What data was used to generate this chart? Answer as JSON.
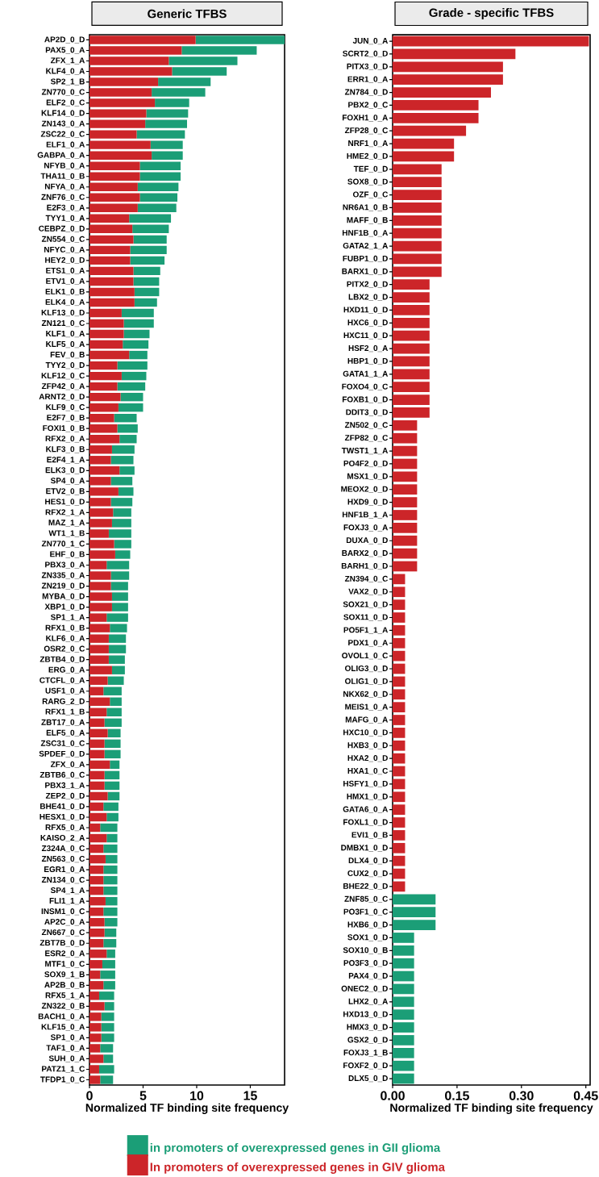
{
  "chart_data": [
    {
      "type": "bar",
      "orientation": "horizontal",
      "stacked": true,
      "title": "Generic TFBS",
      "xlabel": "Normalized TF binding site frequency",
      "xlim": [
        0,
        18.2
      ],
      "xticks": [
        0,
        5,
        10,
        15
      ],
      "legend": "bottom",
      "categories": [
        "AP2D_0_D",
        "PAX5_0_A",
        "ZFX_1_A",
        "KLF4_0_A",
        "SP2_1_B",
        "ZN770_0_C",
        "ELF2_0_C",
        "KLF14_0_D",
        "ZN143_0_A",
        "ZSC22_0_C",
        "ELF1_0_A",
        "GABPA_0_A",
        "NFYB_0_A",
        "THA11_0_B",
        "NFYA_0_A",
        "ZNF76_0_C",
        "E2F3_0_A",
        "TYY1_0_A",
        "CEBPZ_0_D",
        "ZN554_0_C",
        "NFYC_0_A",
        "HEY2_0_D",
        "ETS1_0_A",
        "ETV1_0_A",
        "ELK1_0_B",
        "ELK4_0_A",
        "KLF13_0_D",
        "ZN121_0_C",
        "KLF1_0_A",
        "KLF5_0_A",
        "FEV_0_B",
        "TYY2_0_D",
        "KLF12_0_C",
        "ZFP42_0_A",
        "ARNT2_0_D",
        "KLF9_0_C",
        "E2F7_0_B",
        "FOXI1_0_B",
        "RFX2_0_A",
        "KLF3_0_B",
        "E2F4_1_A",
        "ELK3_0_D",
        "SP4_0_A",
        "ETV2_0_B",
        "HES1_0_D",
        "RFX2_1_A",
        "MAZ_1_A",
        "WT1_1_B",
        "ZN770_1_C",
        "EHF_0_B",
        "PBX3_0_A",
        "ZN335_0_A",
        "ZN219_0_D",
        "MYBA_0_D",
        "XBP1_0_D",
        "SP1_1_A",
        "RFX1_0_B",
        "KLF6_0_A",
        "OSR2_0_C",
        "ZBTB4_0_D",
        "ERG_0_A",
        "CTCFL_0_A",
        "USF1_0_A",
        "RARG_2_D",
        "RFX1_1_B",
        "ZBT17_0_A",
        "ELF5_0_A",
        "ZSC31_0_C",
        "SPDEF_0_D",
        "ZFX_0_A",
        "ZBTB6_0_C",
        "PBX3_1_A",
        "ZEP2_0_D",
        "BHE41_0_D",
        "HESX1_0_D",
        "RFX5_0_A",
        "KAISO_2_A",
        "Z324A_0_C",
        "ZN563_0_C",
        "EGR1_0_A",
        "ZN134_0_C",
        "SP4_1_A",
        "FLI1_1_A",
        "INSM1_0_C",
        "AP2C_0_A",
        "ZN667_0_C",
        "ZBT7B_0_D",
        "ESR2_0_A",
        "MTF1_0_C",
        "SOX9_1_B",
        "AP2B_0_B",
        "RFX5_1_A",
        "ZN322_0_B",
        "BACH1_0_A",
        "KLF15_0_A",
        "SP1_0_A",
        "TAF1_0_A",
        "SUH_0_A",
        "PATZ1_1_C",
        "TFDP1_0_C"
      ],
      "series": [
        {
          "name": "In promoters of overexpressed genes in GIV glioma",
          "color": "#cc2529",
          "values": [
            9.9,
            8.6,
            7.4,
            7.7,
            6.4,
            5.8,
            6.1,
            5.3,
            5.2,
            4.4,
            5.7,
            5.8,
            4.7,
            4.7,
            4.5,
            4.7,
            4.5,
            3.7,
            4.0,
            4.1,
            3.8,
            3.8,
            4.1,
            4.1,
            4.2,
            4.2,
            3.0,
            3.2,
            3.2,
            3.1,
            3.7,
            2.6,
            3.0,
            2.6,
            2.9,
            2.7,
            2.3,
            2.6,
            2.8,
            2.1,
            2.0,
            2.8,
            2.0,
            2.7,
            2.0,
            2.2,
            2.1,
            1.8,
            2.3,
            2.4,
            1.6,
            2.0,
            2.0,
            2.1,
            2.1,
            1.6,
            1.9,
            1.8,
            1.8,
            1.8,
            2.1,
            1.7,
            1.3,
            1.9,
            1.6,
            1.4,
            1.7,
            1.4,
            1.4,
            1.9,
            1.4,
            1.4,
            1.7,
            1.3,
            1.6,
            1.0,
            1.6,
            1.3,
            1.5,
            1.3,
            1.3,
            1.3,
            1.5,
            1.3,
            1.4,
            1.4,
            1.3,
            1.6,
            1.2,
            1.0,
            1.3,
            0.9,
            1.4,
            1.1,
            1.1,
            1.1,
            1.0,
            1.3,
            0.9,
            1.0
          ]
        },
        {
          "name": "in promoters of overexpressed genes in GII glioma",
          "color": "#1b9e77",
          "values": [
            8.3,
            7.0,
            6.4,
            5.1,
            4.9,
            5.0,
            3.2,
            3.9,
            3.9,
            4.5,
            3.0,
            2.9,
            3.8,
            3.8,
            3.8,
            3.5,
            3.6,
            3.9,
            3.4,
            3.1,
            3.4,
            3.2,
            2.5,
            2.4,
            2.3,
            2.1,
            3.0,
            2.8,
            2.4,
            2.4,
            1.7,
            2.8,
            2.3,
            2.6,
            2.1,
            2.3,
            2.1,
            1.9,
            1.6,
            2.1,
            2.1,
            1.4,
            2.0,
            1.4,
            2.0,
            1.7,
            1.8,
            2.1,
            1.6,
            1.4,
            2.1,
            1.7,
            1.6,
            1.5,
            1.5,
            2.0,
            1.6,
            1.6,
            1.6,
            1.5,
            1.2,
            1.5,
            1.7,
            1.1,
            1.4,
            1.6,
            1.2,
            1.5,
            1.5,
            0.9,
            1.4,
            1.4,
            1.1,
            1.4,
            1.1,
            1.6,
            1.0,
            1.3,
            1.1,
            1.3,
            1.3,
            1.3,
            1.1,
            1.3,
            1.2,
            1.1,
            1.2,
            0.8,
            1.2,
            1.4,
            1.1,
            1.4,
            0.9,
            1.2,
            1.2,
            1.2,
            1.2,
            0.9,
            1.4,
            1.2
          ]
        }
      ]
    },
    {
      "type": "bar",
      "orientation": "horizontal",
      "title": "Grade - specific TFBS",
      "xlabel": "Normalized TF binding site frequency",
      "xlim": [
        0,
        0.46
      ],
      "xticks": [
        {
          "value": 0,
          "label": "0.00"
        },
        {
          "value": 0.15,
          "label": "0.15"
        },
        {
          "value": 0.3,
          "label": "0.30"
        },
        {
          "value": 0.45,
          "label": "0.45"
        }
      ],
      "categories": [
        "JUN_0_A",
        "SCRT2_0_D",
        "PITX3_0_D",
        "ERR1_0_A",
        "ZN784_0_D",
        "PBX2_0_C",
        "FOXH1_0_A",
        "ZFP28_0_C",
        "NRF1_0_A",
        "HME2_0_D",
        "TEF_0_D",
        "SOX8_0_D",
        "OZF_0_C",
        "NR6A1_0_B",
        "MAFF_0_B",
        "HNF1B_0_A",
        "GATA2_1_A",
        "FUBP1_0_D",
        "BARX1_0_D",
        "PITX2_0_D",
        "LBX2_0_D",
        "HXD11_0_D",
        "HXC6_0_D",
        "HXC11_0_D",
        "HSF2_0_A",
        "HBP1_0_D",
        "GATA1_1_A",
        "FOXO4_0_C",
        "FOXB1_0_D",
        "DDIT3_0_D",
        "ZN502_0_C",
        "ZFP82_0_C",
        "TWST1_1_A",
        "PO4F2_0_D",
        "MSX1_0_D",
        "MEOX2_0_D",
        "HXD9_0_D",
        "HNF1B_1_A",
        "FOXJ3_0_A",
        "DUXA_0_D",
        "BARX2_0_D",
        "BARH1_0_D",
        "ZN394_0_C",
        "VAX2_0_D",
        "SOX21_0_D",
        "SOX11_0_D",
        "PO5F1_1_A",
        "PDX1_0_A",
        "OVOL1_0_C",
        "OLIG3_0_D",
        "OLIG1_0_D",
        "NKX62_0_D",
        "MEIS1_0_A",
        "MAFG_0_A",
        "HXC10_0_D",
        "HXB3_0_D",
        "HXA2_0_D",
        "HXA1_0_C",
        "HSFY1_0_D",
        "HMX1_0_D",
        "GATA6_0_A",
        "FOXL1_0_D",
        "EVI1_0_B",
        "DMBX1_0_D",
        "DLX4_0_D",
        "CUX2_0_D",
        "BHE22_0_D",
        "ZNF85_0_C",
        "PO3F1_0_C",
        "HXB6_0_D",
        "SOX1_0_D",
        "SOX10_0_B",
        "PO3F3_0_D",
        "PAX4_0_D",
        "ONEC2_0_D",
        "LHX2_0_A",
        "HXD13_0_D",
        "HMX3_0_D",
        "GSX2_0_D",
        "FOXJ3_1_B",
        "FOXF2_0_D",
        "DLX5_0_D"
      ],
      "series": [
        {
          "color": "#cc2529",
          "values": [
            0.457,
            0.286,
            0.257,
            0.257,
            0.229,
            0.2,
            0.2,
            0.171,
            0.143,
            0.143,
            0.114,
            0.114,
            0.114,
            0.114,
            0.114,
            0.114,
            0.114,
            0.114,
            0.114,
            0.086,
            0.086,
            0.086,
            0.086,
            0.086,
            0.086,
            0.086,
            0.086,
            0.086,
            0.086,
            0.086,
            0.057,
            0.057,
            0.057,
            0.057,
            0.057,
            0.057,
            0.057,
            0.057,
            0.057,
            0.057,
            0.057,
            0.057,
            0.029,
            0.029,
            0.029,
            0.029,
            0.029,
            0.029,
            0.029,
            0.029,
            0.029,
            0.029,
            0.029,
            0.029,
            0.029,
            0.029,
            0.029,
            0.029,
            0.029,
            0.029,
            0.029,
            0.029,
            0.029,
            0.029,
            0.029,
            0.029,
            0.029,
            null,
            null,
            null,
            null,
            null,
            null,
            null,
            null,
            null,
            null,
            null,
            null,
            null,
            null,
            null
          ]
        },
        {
          "color": "#1b9e77",
          "values": [
            null,
            null,
            null,
            null,
            null,
            null,
            null,
            null,
            null,
            null,
            null,
            null,
            null,
            null,
            null,
            null,
            null,
            null,
            null,
            null,
            null,
            null,
            null,
            null,
            null,
            null,
            null,
            null,
            null,
            null,
            null,
            null,
            null,
            null,
            null,
            null,
            null,
            null,
            null,
            null,
            null,
            null,
            null,
            null,
            null,
            null,
            null,
            null,
            null,
            null,
            null,
            null,
            null,
            null,
            null,
            null,
            null,
            null,
            null,
            null,
            null,
            null,
            null,
            null,
            null,
            null,
            null,
            0.1,
            0.1,
            0.1,
            0.05,
            0.05,
            0.05,
            0.05,
            0.05,
            0.05,
            0.05,
            0.05,
            0.05,
            0.05,
            0.05,
            0.05
          ]
        }
      ]
    }
  ]
}
